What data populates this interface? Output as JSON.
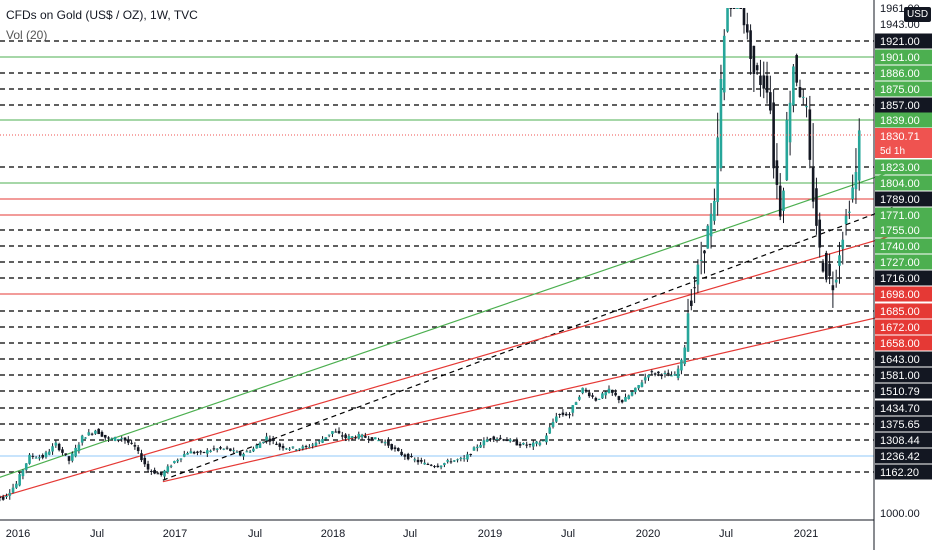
{
  "header": {
    "title": "CFDs on Gold (US$ / OZ), 1W, TVC",
    "volume_label": "Vol (20)"
  },
  "currency_badge": "USD",
  "current_price": {
    "label": "1830.71",
    "timer": "5d 1h",
    "color": "#ef5350"
  },
  "chart_data": {
    "type": "candlestick",
    "symbol": "CFDs on Gold (US$ / OZ)",
    "timeframe": "1W",
    "source": "TVC",
    "x_ticks": [
      "2016",
      "Jul",
      "2017",
      "Jul",
      "2018",
      "Jul",
      "2019",
      "Jul",
      "2020",
      "Jul",
      "2021"
    ],
    "x_range": [
      "2015-11",
      "2021-08"
    ],
    "y_range": [
      1000,
      1960
    ],
    "y_tick_labels": [
      "1961.00",
      "1943.00",
      "1921.00",
      "1901.00",
      "1886.00",
      "1875.00",
      "1857.00",
      "1839.00",
      "1823.00",
      "1804.00",
      "1789.00",
      "1771.00",
      "1755.00",
      "1740.00",
      "1727.00",
      "1716.00",
      "1698.00",
      "1685.00",
      "1672.00",
      "1658.00",
      "1643.00",
      "1581.00",
      "1510.79",
      "1434.70",
      "1375.65",
      "1308.44",
      "1236.42",
      "1162.20",
      "1000.00"
    ],
    "horizontal_levels": [
      {
        "value": "1921.00",
        "style": "dashed",
        "color": "#000000",
        "label_bg": "#131722"
      },
      {
        "value": "1901.00",
        "style": "solid",
        "color": "#4caf50",
        "label_bg": "#4caf50"
      },
      {
        "value": "1886.00",
        "style": "dashed",
        "color": "#000000",
        "label_bg": "#4caf50"
      },
      {
        "value": "1875.00",
        "style": "dashed",
        "color": "#000000",
        "label_bg": "#4caf50"
      },
      {
        "value": "1857.00",
        "style": "dashed",
        "color": "#000000",
        "label_bg": "#131722"
      },
      {
        "value": "1839.00",
        "style": "solid",
        "color": "#4caf50",
        "label_bg": "#4caf50"
      },
      {
        "value": "1823.00",
        "style": "dashed",
        "color": "#000000",
        "label_bg": "#4caf50"
      },
      {
        "value": "1804.00",
        "style": "solid",
        "color": "#4caf50",
        "label_bg": "#4caf50"
      },
      {
        "value": "1789.00",
        "style": "solid",
        "color": "#e53935",
        "label_bg": "#131722"
      },
      {
        "value": "1771.00",
        "style": "solid",
        "color": "#e53935",
        "label_bg": "#4caf50"
      },
      {
        "value": "1755.00",
        "style": "dashed",
        "color": "#000000",
        "label_bg": "#4caf50"
      },
      {
        "value": "1740.00",
        "style": "dashed",
        "color": "#000000",
        "label_bg": "#4caf50"
      },
      {
        "value": "1727.00",
        "style": "dashed",
        "color": "#000000",
        "label_bg": "#4caf50"
      },
      {
        "value": "1716.00",
        "style": "dashed",
        "color": "#000000",
        "label_bg": "#131722"
      },
      {
        "value": "1698.00",
        "style": "solid",
        "color": "#e53935",
        "label_bg": "#e53935"
      },
      {
        "value": "1685.00",
        "style": "dashed",
        "color": "#000000",
        "label_bg": "#e53935"
      },
      {
        "value": "1672.00",
        "style": "dashed",
        "color": "#000000",
        "label_bg": "#e53935"
      },
      {
        "value": "1658.00",
        "style": "dashed",
        "color": "#000000",
        "label_bg": "#e53935"
      },
      {
        "value": "1643.00",
        "style": "dashed",
        "color": "#000000",
        "label_bg": "#131722"
      },
      {
        "value": "1581.00",
        "style": "dashed",
        "color": "#000000",
        "label_bg": "#131722"
      },
      {
        "value": "1510.79",
        "style": "dashed",
        "color": "#000000",
        "label_bg": "#131722"
      },
      {
        "value": "1434.70",
        "style": "dashed",
        "color": "#000000",
        "label_bg": "#131722"
      },
      {
        "value": "1375.65",
        "style": "dashed",
        "color": "#000000",
        "label_bg": "#131722"
      },
      {
        "value": "1308.44",
        "style": "dashed",
        "color": "#000000",
        "label_bg": "#131722"
      },
      {
        "value": "1236.42",
        "style": "solid",
        "color": "#90caf9",
        "label_bg": "#131722"
      },
      {
        "value": "1162.20",
        "style": "dashed",
        "color": "#000000",
        "label_bg": "#131722"
      }
    ],
    "trendlines": [
      {
        "color": "#4caf50",
        "style": "solid",
        "from": [
          "2015-11",
          1130
        ],
        "to": [
          "2021-08",
          1821
        ]
      },
      {
        "color": "#000000",
        "style": "dashed",
        "from": [
          "2016-12",
          1130
        ],
        "to": [
          "2021-08",
          1783
        ]
      },
      {
        "color": "#e53935",
        "style": "solid",
        "from": [
          "2015-11",
          1053
        ],
        "to": [
          "2021-08",
          1752
        ]
      },
      {
        "color": "#e53935",
        "style": "solid",
        "from": [
          "2016-12",
          1124
        ],
        "to": [
          "2021-08",
          1684
        ]
      }
    ],
    "price_path": [
      [
        "2015-11",
        1065
      ],
      [
        "2015-12",
        1060
      ],
      [
        "2016-01",
        1115
      ],
      [
        "2016-02",
        1235
      ],
      [
        "2016-03",
        1232
      ],
      [
        "2016-04",
        1290
      ],
      [
        "2016-05",
        1215
      ],
      [
        "2016-06",
        1320
      ],
      [
        "2016-07",
        1350
      ],
      [
        "2016-08",
        1310
      ],
      [
        "2016-09",
        1318
      ],
      [
        "2016-10",
        1275
      ],
      [
        "2016-11",
        1175
      ],
      [
        "2016-12",
        1150
      ],
      [
        "2017-01",
        1212
      ],
      [
        "2017-02",
        1255
      ],
      [
        "2017-03",
        1249
      ],
      [
        "2017-04",
        1268
      ],
      [
        "2017-05",
        1268
      ],
      [
        "2017-06",
        1242
      ],
      [
        "2017-07",
        1269
      ],
      [
        "2017-08",
        1320
      ],
      [
        "2017-09",
        1280
      ],
      [
        "2017-10",
        1271
      ],
      [
        "2017-11",
        1275
      ],
      [
        "2017-12",
        1303
      ],
      [
        "2018-01",
        1345
      ],
      [
        "2018-02",
        1318
      ],
      [
        "2018-03",
        1325
      ],
      [
        "2018-04",
        1315
      ],
      [
        "2018-05",
        1298
      ],
      [
        "2018-06",
        1252
      ],
      [
        "2018-07",
        1223
      ],
      [
        "2018-08",
        1200
      ],
      [
        "2018-09",
        1192
      ],
      [
        "2018-10",
        1215
      ],
      [
        "2018-11",
        1222
      ],
      [
        "2018-12",
        1282
      ],
      [
        "2019-01",
        1320
      ],
      [
        "2019-02",
        1313
      ],
      [
        "2019-03",
        1292
      ],
      [
        "2019-04",
        1283
      ],
      [
        "2019-05",
        1305
      ],
      [
        "2019-06",
        1409
      ],
      [
        "2019-07",
        1413
      ],
      [
        "2019-08",
        1520
      ],
      [
        "2019-09",
        1472
      ],
      [
        "2019-10",
        1512
      ],
      [
        "2019-11",
        1463
      ],
      [
        "2019-12",
        1517
      ],
      [
        "2020-01",
        1589
      ],
      [
        "2020-02",
        1585
      ],
      [
        "2020-03",
        1577
      ],
      [
        "2020-04",
        1686
      ],
      [
        "2020-05",
        1730
      ],
      [
        "2020-06",
        1780
      ],
      [
        "2020-07",
        1975
      ],
      [
        "2020-08",
        1967
      ],
      [
        "2020-09",
        1886
      ],
      [
        "2020-10",
        1878
      ],
      [
        "2020-11",
        1776
      ],
      [
        "2020-12",
        1895
      ],
      [
        "2021-01",
        1848
      ],
      [
        "2021-02",
        1734
      ],
      [
        "2021-03",
        1708
      ],
      [
        "2021-04",
        1768
      ],
      [
        "2021-05",
        1830
      ]
    ],
    "volume_series_name": "Vol (20)"
  }
}
